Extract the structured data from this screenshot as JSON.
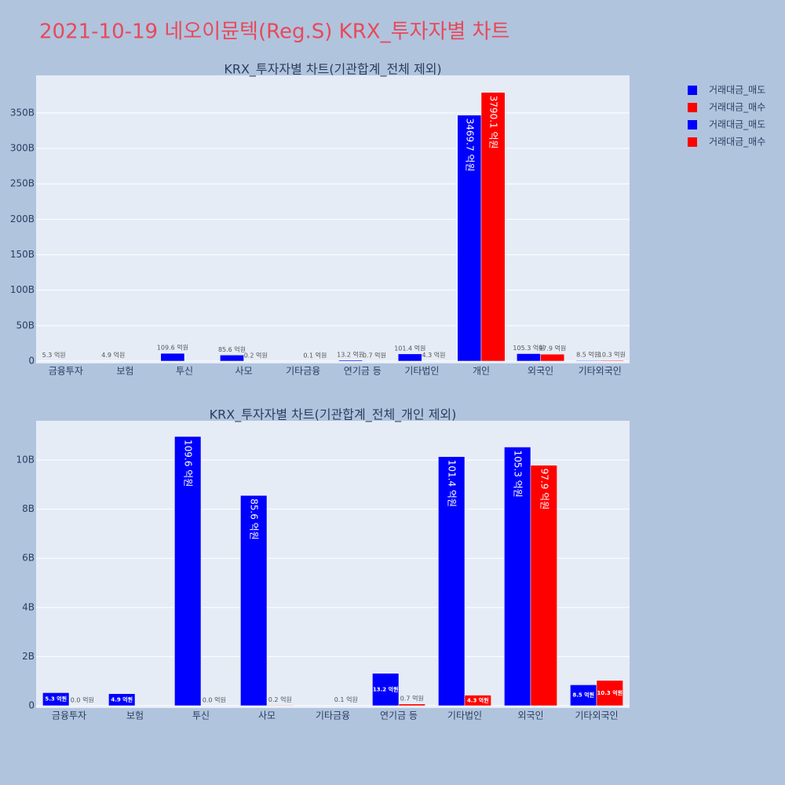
{
  "title": "2021-10-19 네오이뮨텍(Reg.S) KRX_투자자별 차트",
  "chart_data": [
    {
      "type": "bar",
      "title": "KRX_투자자별 차트(기관합계_전체 제외)",
      "categories": [
        "금융투자",
        "보험",
        "투신",
        "사모",
        "기타금융",
        "연기금 등",
        "기타법인",
        "개인",
        "외국인",
        "기타외국인"
      ],
      "series": [
        {
          "name": "거래대금_매도",
          "color": "#0000ff",
          "values": [
            0.53,
            0.49,
            10.96,
            8.56,
            null,
            1.32,
            10.14,
            346.97,
            10.53,
            0.85
          ],
          "value_labels": [
            "5.3 억원",
            "4.9 억원",
            "109.6 억원",
            "85.6 억원",
            null,
            "13.2 억원",
            "101.4 억원",
            "3469.7 억원",
            "105.3 억원",
            "8.5 억원"
          ]
        },
        {
          "name": "거래대금_매수",
          "color": "#ff0000",
          "values": [
            null,
            null,
            null,
            0.02,
            0.01,
            0.07,
            0.43,
            379.01,
            9.79,
            1.03
          ],
          "value_labels": [
            null,
            null,
            null,
            "0.2 억원",
            "0.1 억원",
            "0.7 억원",
            "4.3 억원",
            "3790.1 억원",
            "97.9 억원",
            "10.3 억원"
          ]
        }
      ],
      "ylim": [
        0,
        403
      ],
      "yticks": [
        0,
        {
          "value": 50,
          "label": "50B"
        },
        {
          "value": 100,
          "label": "100B"
        },
        {
          "value": 150,
          "label": "150B"
        },
        {
          "value": 200,
          "label": "200B"
        },
        {
          "value": 250,
          "label": "250B"
        },
        {
          "value": 300,
          "label": "300B"
        },
        {
          "value": 350,
          "label": "350B"
        }
      ],
      "grid": true
    },
    {
      "type": "bar",
      "title": "KRX_투자자별 차트(기관합계_전체_개인 제외)",
      "categories": [
        "금융투자",
        "보험",
        "투신",
        "사모",
        "기타금융",
        "연기금 등",
        "기타법인",
        "외국인",
        "기타외국인"
      ],
      "series": [
        {
          "name": "거래대금_매도",
          "color": "#0000ff",
          "values": [
            0.53,
            0.49,
            10.96,
            8.56,
            null,
            1.32,
            10.14,
            10.53,
            0.85
          ],
          "value_labels": [
            "5.3 억원",
            "4.9 억원",
            "109.6 억원",
            "85.6 억원",
            null,
            "13.2 억원",
            "101.4 억원",
            "105.3 억원",
            "8.5 억원"
          ]
        },
        {
          "name": "거래대금_매수",
          "color": "#ff0000",
          "values": [
            0,
            null,
            0,
            0.02,
            0.01,
            0.07,
            0.43,
            9.79,
            1.03
          ],
          "value_labels": [
            "0.0 억원",
            null,
            "0.0 억원",
            "0.2 억원",
            "0.1 억원",
            "0.7 억원",
            "4.3 억원",
            "97.9 억원",
            "10.3 억원"
          ]
        }
      ],
      "ylim": [
        0,
        11.6
      ],
      "yticks": [
        0,
        {
          "value": 2,
          "label": "2B"
        },
        {
          "value": 4,
          "label": "4B"
        },
        {
          "value": 6,
          "label": "6B"
        },
        {
          "value": 8,
          "label": "8B"
        },
        {
          "value": 10,
          "label": "10B"
        }
      ],
      "grid": true
    }
  ]
}
